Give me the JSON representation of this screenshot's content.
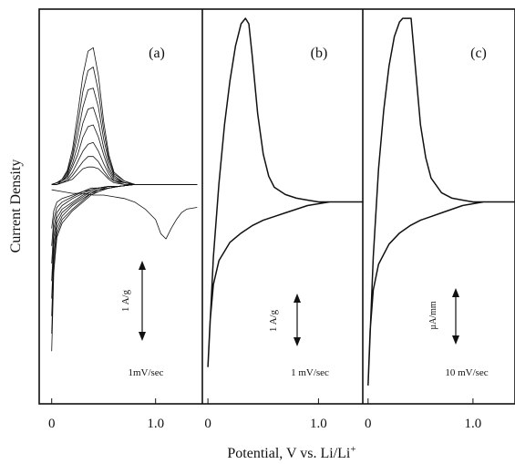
{
  "figure": {
    "ylabel": "Current Density",
    "xlabel_main": "Potential, V vs. Li/Li",
    "xlabel_sup": "+",
    "panels": [
      {
        "label": "(a)",
        "scan_rate": "1mV/sec",
        "scale_bar": "1 A/g",
        "xticks": [
          {
            "v": 0,
            "t": "0"
          },
          {
            "v": 1.0,
            "t": "1.0"
          }
        ]
      },
      {
        "label": "(b)",
        "scan_rate": "1 mV/sec",
        "scale_bar": "1 A/g",
        "xticks": [
          {
            "v": 0,
            "t": "0"
          },
          {
            "v": 1.0,
            "t": "1.0"
          }
        ]
      },
      {
        "label": "(c)",
        "scan_rate": "10 mV/sec",
        "scale_bar": "µA/mm",
        "xticks": [
          {
            "v": 0,
            "t": "0"
          },
          {
            "v": 1.0,
            "t": "1.0"
          }
        ]
      }
    ]
  },
  "chart_data": [
    {
      "type": "line",
      "title": "(a)",
      "xlabel": "Potential, V vs. Li/Li+",
      "ylabel": "Current Density",
      "xlim": [
        -0.12,
        1.45
      ],
      "ylim": [
        -1.25,
        1.0
      ],
      "annotations": [
        "1mV/sec",
        "1 A/g"
      ],
      "series": [
        {
          "x": [
            0.0,
            0.02,
            0.05,
            0.1,
            0.2,
            0.3,
            0.38,
            0.45,
            0.55,
            0.65,
            0.8,
            1.0,
            1.2,
            1.4
          ],
          "y": [
            -0.95,
            -0.5,
            -0.3,
            -0.22,
            -0.15,
            -0.1,
            -0.06,
            -0.04,
            -0.02,
            -0.01,
            0.0,
            0.0,
            0.0,
            0.0
          ]
        },
        {
          "x": [
            0.0,
            0.02,
            0.05,
            0.1,
            0.2,
            0.3,
            0.38,
            0.45,
            0.55,
            0.65,
            0.8,
            1.0,
            1.2,
            1.4
          ],
          "y": [
            -0.85,
            -0.45,
            -0.28,
            -0.2,
            -0.14,
            -0.09,
            -0.05,
            -0.04,
            -0.02,
            -0.01,
            0.0,
            0.0,
            0.0,
            0.0
          ]
        },
        {
          "x": [
            0.0,
            0.02,
            0.05,
            0.1,
            0.2,
            0.3,
            0.38,
            0.45,
            0.55,
            0.65,
            0.8,
            1.0,
            1.2,
            1.4
          ],
          "y": [
            -0.75,
            -0.4,
            -0.25,
            -0.18,
            -0.12,
            -0.08,
            -0.05,
            -0.03,
            -0.02,
            -0.01,
            0.0,
            0.0,
            0.0,
            0.0
          ]
        },
        {
          "x": [
            0.0,
            0.02,
            0.05,
            0.1,
            0.2,
            0.3,
            0.38,
            0.45,
            0.55,
            0.65,
            0.8,
            1.0,
            1.2,
            1.4
          ],
          "y": [
            -0.65,
            -0.35,
            -0.22,
            -0.16,
            -0.11,
            -0.07,
            -0.04,
            -0.03,
            -0.02,
            -0.01,
            0.0,
            0.0,
            0.0,
            0.0
          ]
        },
        {
          "x": [
            0.0,
            0.02,
            0.05,
            0.1,
            0.2,
            0.3,
            0.38,
            0.45,
            0.55,
            0.65,
            0.8,
            1.0,
            1.2,
            1.4
          ],
          "y": [
            -0.55,
            -0.3,
            -0.19,
            -0.14,
            -0.1,
            -0.06,
            -0.04,
            -0.03,
            -0.01,
            -0.01,
            0.0,
            0.0,
            0.0,
            0.0
          ]
        },
        {
          "x": [
            0.0,
            0.02,
            0.05,
            0.1,
            0.2,
            0.3,
            0.38,
            0.45,
            0.55,
            0.65,
            0.8,
            1.0,
            1.2,
            1.4
          ],
          "y": [
            -0.45,
            -0.25,
            -0.16,
            -0.12,
            -0.08,
            -0.05,
            -0.03,
            -0.02,
            -0.01,
            -0.01,
            0.0,
            0.0,
            0.0,
            0.0
          ]
        },
        {
          "x": [
            0.0,
            0.02,
            0.05,
            0.1,
            0.2,
            0.3,
            0.38,
            0.45,
            0.55,
            0.65,
            0.8,
            1.0,
            1.2,
            1.4
          ],
          "y": [
            -0.35,
            -0.2,
            -0.13,
            -0.1,
            -0.07,
            -0.04,
            -0.03,
            -0.02,
            -0.01,
            -0.01,
            0.0,
            0.0,
            0.0,
            0.0
          ]
        },
        {
          "x": [
            0.0,
            0.02,
            0.05,
            0.1,
            0.2,
            0.3,
            0.38,
            0.45,
            0.55,
            0.65,
            0.8,
            1.0,
            1.2,
            1.4
          ],
          "y": [
            -0.25,
            -0.15,
            -0.1,
            -0.08,
            -0.06,
            -0.04,
            -0.02,
            -0.02,
            -0.01,
            -0.01,
            0.0,
            0.0,
            0.0,
            0.0
          ]
        },
        {
          "x": [
            0.0,
            0.05,
            0.1,
            0.15,
            0.2,
            0.25,
            0.3,
            0.35,
            0.4,
            0.45,
            0.5,
            0.55,
            0.6,
            0.7,
            0.8,
            1.0,
            1.2,
            1.4
          ],
          "y": [
            0.0,
            0.01,
            0.03,
            0.08,
            0.2,
            0.4,
            0.62,
            0.76,
            0.78,
            0.62,
            0.36,
            0.17,
            0.07,
            0.02,
            0.0,
            0.0,
            0.0,
            0.0
          ]
        },
        {
          "x": [
            0.0,
            0.05,
            0.1,
            0.15,
            0.2,
            0.25,
            0.3,
            0.35,
            0.4,
            0.45,
            0.5,
            0.55,
            0.6,
            0.7,
            0.8,
            1.0,
            1.2,
            1.4
          ],
          "y": [
            0.0,
            0.01,
            0.03,
            0.07,
            0.17,
            0.34,
            0.53,
            0.65,
            0.67,
            0.53,
            0.31,
            0.15,
            0.06,
            0.02,
            0.0,
            0.0,
            0.0,
            0.0
          ]
        },
        {
          "x": [
            0.0,
            0.05,
            0.1,
            0.15,
            0.2,
            0.25,
            0.3,
            0.35,
            0.4,
            0.45,
            0.5,
            0.55,
            0.6,
            0.7,
            0.8,
            1.0,
            1.2,
            1.4
          ],
          "y": [
            0.0,
            0.01,
            0.02,
            0.06,
            0.15,
            0.28,
            0.44,
            0.54,
            0.55,
            0.44,
            0.26,
            0.13,
            0.05,
            0.01,
            0.0,
            0.0,
            0.0,
            0.0
          ]
        },
        {
          "x": [
            0.0,
            0.05,
            0.1,
            0.15,
            0.2,
            0.25,
            0.3,
            0.35,
            0.4,
            0.45,
            0.5,
            0.55,
            0.6,
            0.7,
            0.8,
            1.0,
            1.2,
            1.4
          ],
          "y": [
            0.0,
            0.01,
            0.02,
            0.05,
            0.12,
            0.22,
            0.35,
            0.43,
            0.44,
            0.35,
            0.21,
            0.1,
            0.04,
            0.01,
            0.0,
            0.0,
            0.0,
            0.0
          ]
        },
        {
          "x": [
            0.0,
            0.05,
            0.1,
            0.15,
            0.2,
            0.25,
            0.3,
            0.35,
            0.4,
            0.45,
            0.5,
            0.55,
            0.6,
            0.7,
            0.8,
            1.0,
            1.2,
            1.4
          ],
          "y": [
            0.0,
            0.0,
            0.02,
            0.04,
            0.1,
            0.17,
            0.27,
            0.33,
            0.34,
            0.27,
            0.17,
            0.08,
            0.03,
            0.01,
            0.0,
            0.0,
            0.0,
            0.0
          ]
        },
        {
          "x": [
            0.0,
            0.05,
            0.1,
            0.15,
            0.2,
            0.25,
            0.3,
            0.35,
            0.4,
            0.45,
            0.5,
            0.55,
            0.6,
            0.7,
            0.8,
            1.0,
            1.2,
            1.4
          ],
          "y": [
            0.0,
            0.0,
            0.01,
            0.03,
            0.07,
            0.13,
            0.19,
            0.23,
            0.24,
            0.19,
            0.12,
            0.06,
            0.02,
            0.01,
            0.0,
            0.0,
            0.0,
            0.0
          ]
        },
        {
          "x": [
            0.0,
            0.05,
            0.1,
            0.15,
            0.2,
            0.25,
            0.3,
            0.35,
            0.4,
            0.45,
            0.5,
            0.55,
            0.6,
            0.7,
            0.8,
            1.0,
            1.2,
            1.4
          ],
          "y": [
            0.0,
            0.0,
            0.01,
            0.02,
            0.05,
            0.09,
            0.13,
            0.16,
            0.16,
            0.13,
            0.08,
            0.04,
            0.02,
            0.0,
            0.0,
            0.0,
            0.0,
            0.0
          ]
        },
        {
          "x": [
            0.0,
            0.05,
            0.1,
            0.15,
            0.2,
            0.25,
            0.3,
            0.35,
            0.4,
            0.45,
            0.5,
            0.55,
            0.6,
            0.7,
            0.8,
            1.0,
            1.2,
            1.4
          ],
          "y": [
            0.0,
            0.0,
            0.01,
            0.02,
            0.03,
            0.06,
            0.09,
            0.1,
            0.1,
            0.09,
            0.06,
            0.03,
            0.01,
            0.0,
            0.0,
            0.0,
            0.0,
            0.0
          ]
        },
        {
          "x": [
            0.0,
            0.1,
            0.2,
            0.3,
            0.4,
            0.5,
            0.6,
            0.7,
            0.8,
            0.9,
            1.0,
            1.05,
            1.1,
            1.15,
            1.2,
            1.25,
            1.3,
            1.4
          ],
          "y": [
            -0.03,
            -0.04,
            -0.05,
            -0.05,
            -0.06,
            -0.06,
            -0.07,
            -0.08,
            -0.1,
            -0.14,
            -0.2,
            -0.28,
            -0.31,
            -0.25,
            -0.2,
            -0.16,
            -0.14,
            -0.13
          ]
        }
      ]
    },
    {
      "type": "line",
      "title": "(b)",
      "xlabel": "Potential, V vs. Li/Li+",
      "ylabel": "Current Density",
      "xlim": [
        -0.05,
        1.4
      ],
      "ylim": [
        -1.1,
        1.05
      ],
      "annotations": [
        "1 mV/sec",
        "1 A/g"
      ],
      "series": [
        {
          "x": [
            0.0,
            0.05,
            0.1,
            0.15,
            0.2,
            0.25,
            0.3,
            0.34,
            0.37,
            0.4,
            0.45,
            0.5,
            0.55,
            0.6,
            0.7,
            0.8,
            0.9,
            1.0,
            1.1,
            1.2,
            1.3,
            1.4,
            1.3,
            1.2,
            1.1,
            1.0,
            0.9,
            0.8,
            0.7,
            0.6,
            0.5,
            0.4,
            0.3,
            0.2,
            0.1,
            0.05,
            0.02,
            0.0
          ],
          "y": [
            -0.9,
            -0.3,
            0.1,
            0.42,
            0.66,
            0.85,
            0.97,
            1.0,
            0.97,
            0.8,
            0.48,
            0.26,
            0.14,
            0.08,
            0.04,
            0.02,
            0.01,
            0.0,
            0.0,
            0.0,
            0.0,
            0.0,
            0.0,
            0.0,
            0.0,
            -0.01,
            -0.02,
            -0.04,
            -0.06,
            -0.08,
            -0.1,
            -0.13,
            -0.17,
            -0.22,
            -0.32,
            -0.45,
            -0.65,
            -0.9
          ]
        }
      ]
    },
    {
      "type": "line",
      "title": "(c)",
      "xlabel": "Potential, V vs. Li/Li+",
      "ylabel": "Current Density",
      "xlim": [
        -0.05,
        1.4
      ],
      "ylim": [
        -1.1,
        1.05
      ],
      "annotations": [
        "10 mV/sec",
        "µA/mm"
      ],
      "series": [
        {
          "x": [
            0.0,
            0.05,
            0.1,
            0.15,
            0.2,
            0.25,
            0.3,
            0.33,
            0.38,
            0.41,
            0.45,
            0.5,
            0.55,
            0.6,
            0.7,
            0.8,
            0.9,
            1.0,
            1.1,
            1.2,
            1.3,
            1.4,
            1.3,
            1.2,
            1.1,
            1.0,
            0.9,
            0.8,
            0.7,
            0.6,
            0.5,
            0.4,
            0.3,
            0.2,
            0.1,
            0.05,
            0.02,
            0.0
          ],
          "y": [
            -1.0,
            -0.3,
            0.18,
            0.5,
            0.74,
            0.9,
            0.98,
            1.0,
            1.0,
            1.0,
            0.74,
            0.42,
            0.24,
            0.13,
            0.05,
            0.02,
            0.01,
            0.0,
            0.0,
            0.0,
            0.0,
            0.0,
            0.0,
            0.0,
            0.0,
            -0.01,
            -0.02,
            -0.04,
            -0.06,
            -0.08,
            -0.1,
            -0.13,
            -0.17,
            -0.23,
            -0.34,
            -0.48,
            -0.7,
            -1.0
          ]
        }
      ]
    }
  ]
}
